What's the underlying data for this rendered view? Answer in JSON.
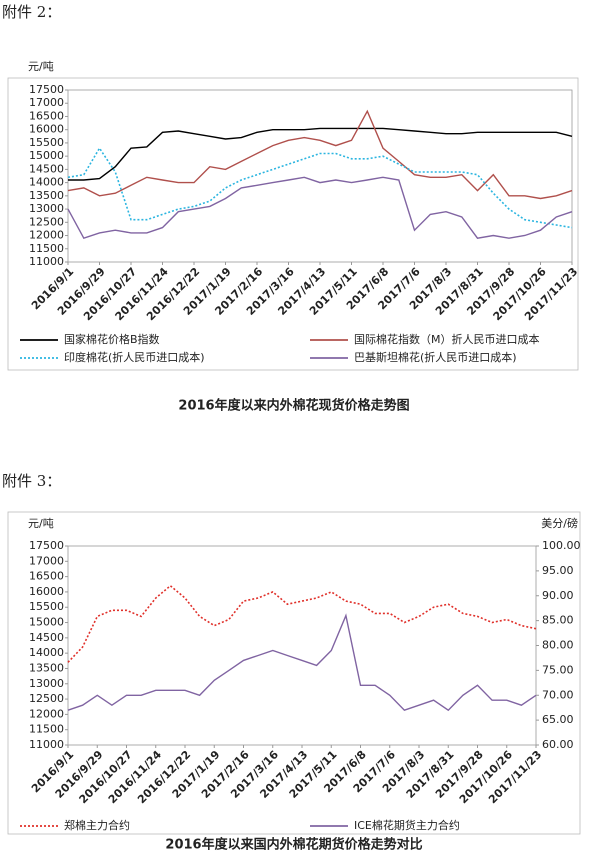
{
  "attachments": [
    "附件 2：",
    "附件 3："
  ],
  "chart_data": [
    {
      "type": "line",
      "title": "2016年度以来内外棉花现货价格走势图",
      "y_label": "元/吨",
      "categories": [
        "2016/9/1",
        null,
        "2016/9/29",
        null,
        "2016/10/27",
        null,
        "2016/11/24",
        null,
        "2016/12/22",
        null,
        "2017/1/19",
        null,
        "2017/2/16",
        null,
        "2017/3/16",
        null,
        "2017/4/13",
        null,
        "2017/5/11",
        null,
        "2017/6/8",
        null,
        "2017/7/6",
        null,
        "2017/8/3",
        null,
        "2017/8/31",
        null,
        "2017/9/28",
        null,
        "2017/10/26",
        null,
        "2017/11/23"
      ],
      "ylim": [
        11000,
        17500
      ],
      "yticks": [
        11000,
        11500,
        12000,
        12500,
        13000,
        13500,
        14000,
        14500,
        15000,
        15500,
        16000,
        16500,
        17000,
        17500
      ],
      "grid": false,
      "legend": "bottom",
      "series": [
        {
          "name": "国家棉花价格B指数",
          "color": "#000000",
          "line_style": "solid",
          "values": [
            14100,
            14100,
            14150,
            14600,
            15300,
            15350,
            15900,
            15950,
            15850,
            15750,
            15650,
            15700,
            15900,
            16000,
            16000,
            16000,
            16050,
            16050,
            16050,
            16050,
            16050,
            16000,
            15950,
            15900,
            15850,
            15850,
            15900,
            15900,
            15900,
            15900,
            15900,
            15900,
            15750
          ]
        },
        {
          "name": "国际棉花指数（M）折人民币进口成本",
          "color": "#b0504c",
          "line_style": "solid",
          "values": [
            13700,
            13800,
            13500,
            13600,
            13900,
            14200,
            14100,
            14000,
            14000,
            14600,
            14500,
            14800,
            15100,
            15400,
            15600,
            15700,
            15600,
            15400,
            15600,
            16700,
            15300,
            14800,
            14300,
            14200,
            14200,
            14300,
            13700,
            14300,
            13500,
            13500,
            13400,
            13500,
            13700
          ]
        },
        {
          "name": "印度棉花(折人民币进口成本)",
          "color": "#2bb5e0",
          "line_style": "dotted",
          "values": [
            14200,
            14300,
            15300,
            14400,
            12600,
            12600,
            12800,
            13000,
            13100,
            13300,
            13800,
            14100,
            14300,
            14500,
            14700,
            14900,
            15100,
            15100,
            14900,
            14900,
            15000,
            14700,
            14400,
            14400,
            14400,
            14400,
            14300,
            13600,
            13000,
            12600,
            12500,
            12400,
            12300
          ]
        },
        {
          "name": "巴基斯坦棉花(折人民币进口成本)",
          "color": "#8064a2",
          "line_style": "solid",
          "values": [
            13000,
            11900,
            12100,
            12200,
            12100,
            12100,
            12300,
            12900,
            13000,
            13100,
            13400,
            13800,
            13900,
            14000,
            14100,
            14200,
            14000,
            14100,
            14000,
            14100,
            14200,
            14100,
            12200,
            12800,
            12900,
            12700,
            11900,
            12000,
            11900,
            12000,
            12200,
            12700,
            12900
          ]
        }
      ]
    },
    {
      "type": "line",
      "title": "2016年度以来国内外棉花期货价格走势对比",
      "y_label": "元/吨",
      "y2_label": "美分/磅",
      "categories": [
        "2016/9/1",
        null,
        "2016/9/29",
        null,
        "2016/10/27",
        null,
        "2016/11/24",
        null,
        "2016/12/22",
        null,
        "2017/1/19",
        null,
        "2017/2/16",
        null,
        "2017/3/16",
        null,
        "2017/4/13",
        null,
        "2017/5/11",
        null,
        "2017/6/8",
        null,
        "2017/7/6",
        null,
        "2017/8/3",
        null,
        "2017/8/31",
        null,
        "2017/9/28",
        null,
        "2017/10/26",
        null,
        "2017/11/23"
      ],
      "ylim": [
        11000,
        17500
      ],
      "yticks": [
        11000,
        11500,
        12000,
        12500,
        13000,
        13500,
        14000,
        14500,
        15000,
        15500,
        16000,
        16500,
        17000,
        17500
      ],
      "y2lim": [
        60,
        100
      ],
      "y2ticks": [
        {
          "value": 60,
          "label": "60.00"
        },
        {
          "value": 65,
          "label": "65.00"
        },
        {
          "value": 70,
          "label": "70.00"
        },
        {
          "value": 75,
          "label": "75.00"
        },
        {
          "value": 80,
          "label": "80.00"
        },
        {
          "value": 85,
          "label": "85.00"
        },
        {
          "value": 90,
          "label": "90.00"
        },
        {
          "value": 95,
          "label": "95.00"
        },
        {
          "value": 100,
          "label": "100.00"
        }
      ],
      "grid": false,
      "legend": "bottom",
      "series": [
        {
          "name": "郑棉主力合约",
          "color": "#e0302a",
          "line_style": "dotted",
          "values": [
            13700,
            14200,
            15200,
            15400,
            15400,
            15200,
            15800,
            16200,
            15800,
            15200,
            14900,
            15100,
            15700,
            15800,
            16000,
            15600,
            15700,
            15800,
            16000,
            15700,
            15600,
            15300,
            15300,
            15000,
            15200,
            15500,
            15600,
            15300,
            15200,
            15000,
            15100,
            14900,
            14800
          ]
        },
        {
          "name": "ICE棉花期货主力合约",
          "color": "#8064a2",
          "line_style": "solid",
          "axis": "y2",
          "values": [
            67,
            68,
            70,
            68,
            70,
            70,
            71,
            71,
            71,
            70,
            73,
            75,
            77,
            78,
            79,
            78,
            77,
            76,
            79,
            86,
            72,
            72,
            70,
            67,
            68,
            69,
            67,
            70,
            72,
            69,
            69,
            68,
            70
          ]
        }
      ]
    }
  ]
}
